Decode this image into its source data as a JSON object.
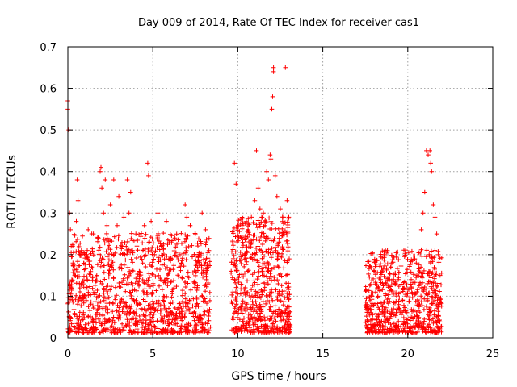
{
  "chart_data": {
    "type": "scatter",
    "title": "Day 009 of 2014, Rate Of TEC Index for receiver cas1",
    "xlabel": "GPS time / hours",
    "ylabel": "ROTI / TECUs",
    "xlim": [
      0,
      25
    ],
    "ylim": [
      0,
      0.7
    ],
    "x_ticks": [
      0,
      5,
      10,
      15,
      20,
      25
    ],
    "y_ticks": [
      0,
      0.1,
      0.2,
      0.3,
      0.4,
      0.5,
      0.6,
      0.7
    ],
    "x_tick_labels": [
      "0",
      "5",
      "10",
      "15",
      "20",
      "25"
    ],
    "y_tick_labels": [
      "0",
      "0.1",
      "0.2",
      "0.3",
      "0.4",
      "0.5",
      "0.6",
      "0.7"
    ],
    "grid": true,
    "marker": "+",
    "color": "#ff0000",
    "series": [
      {
        "name": "cas1",
        "points": [
          [
            0.0,
            0.57
          ],
          [
            0.0,
            0.55
          ],
          [
            0.05,
            0.5
          ],
          [
            0.1,
            0.3
          ],
          [
            0.15,
            0.26
          ],
          [
            0.2,
            0.22
          ],
          [
            0.3,
            0.18
          ],
          [
            0.4,
            0.15
          ],
          [
            0.5,
            0.28
          ],
          [
            0.55,
            0.38
          ],
          [
            0.6,
            0.33
          ],
          [
            0.7,
            0.12
          ],
          [
            0.8,
            0.09
          ],
          [
            1.0,
            0.2
          ],
          [
            1.2,
            0.26
          ],
          [
            1.4,
            0.17
          ],
          [
            1.5,
            0.25
          ],
          [
            1.7,
            0.15
          ],
          [
            1.8,
            0.24
          ],
          [
            1.9,
            0.4
          ],
          [
            1.95,
            0.41
          ],
          [
            2.0,
            0.36
          ],
          [
            2.1,
            0.3
          ],
          [
            2.2,
            0.38
          ],
          [
            2.3,
            0.27
          ],
          [
            2.5,
            0.32
          ],
          [
            2.7,
            0.38
          ],
          [
            2.9,
            0.27
          ],
          [
            3.0,
            0.34
          ],
          [
            3.2,
            0.22
          ],
          [
            3.3,
            0.29
          ],
          [
            3.5,
            0.38
          ],
          [
            3.6,
            0.3
          ],
          [
            3.7,
            0.35
          ],
          [
            3.8,
            0.21
          ],
          [
            4.0,
            0.25
          ],
          [
            4.2,
            0.16
          ],
          [
            4.4,
            0.18
          ],
          [
            4.5,
            0.27
          ],
          [
            4.7,
            0.42
          ],
          [
            4.75,
            0.39
          ],
          [
            4.9,
            0.28
          ],
          [
            5.1,
            0.2
          ],
          [
            5.3,
            0.3
          ],
          [
            5.5,
            0.22
          ],
          [
            5.8,
            0.28
          ],
          [
            6.0,
            0.19
          ],
          [
            6.3,
            0.24
          ],
          [
            6.6,
            0.2
          ],
          [
            6.9,
            0.32
          ],
          [
            7.0,
            0.29
          ],
          [
            7.2,
            0.27
          ],
          [
            7.5,
            0.25
          ],
          [
            7.7,
            0.2
          ],
          [
            7.9,
            0.3
          ],
          [
            8.1,
            0.26
          ],
          [
            8.3,
            0.21
          ],
          [
            9.8,
            0.42
          ],
          [
            9.9,
            0.37
          ],
          [
            10.0,
            0.27
          ],
          [
            10.2,
            0.24
          ],
          [
            10.4,
            0.2
          ],
          [
            10.6,
            0.26
          ],
          [
            10.8,
            0.29
          ],
          [
            11.0,
            0.33
          ],
          [
            11.1,
            0.45
          ],
          [
            11.2,
            0.36
          ],
          [
            11.3,
            0.31
          ],
          [
            11.5,
            0.3
          ],
          [
            11.6,
            0.27
          ],
          [
            11.7,
            0.4
          ],
          [
            11.8,
            0.38
          ],
          [
            11.9,
            0.44
          ],
          [
            11.95,
            0.43
          ],
          [
            12.0,
            0.55
          ],
          [
            12.05,
            0.58
          ],
          [
            12.1,
            0.64
          ],
          [
            12.1,
            0.65
          ],
          [
            12.2,
            0.39
          ],
          [
            12.3,
            0.34
          ],
          [
            12.5,
            0.31
          ],
          [
            12.7,
            0.29
          ],
          [
            12.8,
            0.65
          ],
          [
            12.9,
            0.33
          ],
          [
            13.0,
            0.29
          ],
          [
            17.6,
            0.08
          ],
          [
            17.9,
            0.1
          ],
          [
            18.2,
            0.12
          ],
          [
            18.4,
            0.14
          ],
          [
            18.6,
            0.2
          ],
          [
            18.8,
            0.21
          ],
          [
            19.0,
            0.17
          ],
          [
            19.3,
            0.13
          ],
          [
            19.6,
            0.11
          ],
          [
            19.9,
            0.12
          ],
          [
            20.2,
            0.14
          ],
          [
            20.5,
            0.18
          ],
          [
            20.8,
            0.26
          ],
          [
            20.9,
            0.3
          ],
          [
            21.0,
            0.35
          ],
          [
            21.1,
            0.45
          ],
          [
            21.2,
            0.44
          ],
          [
            21.3,
            0.45
          ],
          [
            21.35,
            0.42
          ],
          [
            21.4,
            0.4
          ],
          [
            21.5,
            0.32
          ],
          [
            21.6,
            0.29
          ],
          [
            21.7,
            0.25
          ],
          [
            21.8,
            0.2
          ],
          [
            21.9,
            0.15
          ]
        ]
      }
    ]
  }
}
